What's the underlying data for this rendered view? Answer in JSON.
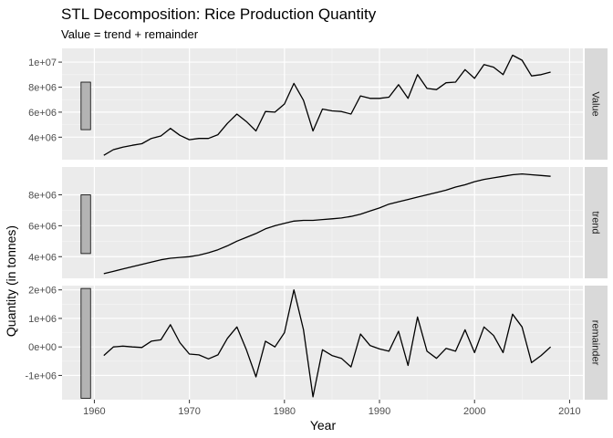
{
  "chart_data": {
    "type": "line",
    "title": "STL Decomposition: Rice Production Quantity",
    "subtitle": "Value = trend + remainder",
    "xlabel": "Year",
    "ylabel": "Quantity (in tonnes)",
    "x": [
      1961,
      1962,
      1963,
      1964,
      1965,
      1966,
      1967,
      1968,
      1969,
      1970,
      1971,
      1972,
      1973,
      1974,
      1975,
      1976,
      1977,
      1978,
      1979,
      1980,
      1981,
      1982,
      1983,
      1984,
      1985,
      1986,
      1987,
      1988,
      1989,
      1990,
      1991,
      1992,
      1993,
      1994,
      1995,
      1996,
      1997,
      1998,
      1999,
      2000,
      2001,
      2002,
      2003,
      2004,
      2005,
      2006,
      2007,
      2008
    ],
    "xlim": [
      1956.6,
      2011.4
    ],
    "x_ticks": [
      1960,
      1970,
      1980,
      1990,
      2000,
      2010
    ],
    "x_tick_labels": [
      "1960",
      "1970",
      "1980",
      "1990",
      "2000",
      "2010"
    ],
    "grid": true,
    "panels": [
      {
        "name": "Value",
        "ylim": [
          2200000,
          11100000
        ],
        "y_ticks": [
          4000000,
          6000000,
          8000000,
          10000000
        ],
        "y_tick_labels": [
          "4e+06",
          "6e+06",
          "8e+06",
          "1e+07"
        ],
        "scale_bar": [
          4600000,
          8400000
        ],
        "values": [
          2550000,
          3000000,
          3200000,
          3350000,
          3480000,
          3900000,
          4100000,
          4700000,
          4150000,
          3800000,
          3900000,
          3900000,
          4200000,
          5100000,
          5850000,
          5250000,
          4500000,
          6050000,
          6000000,
          6650000,
          8300000,
          6950000,
          4500000,
          6250000,
          6100000,
          6050000,
          5850000,
          7300000,
          7100000,
          7100000,
          7200000,
          8200000,
          7100000,
          9000000,
          7900000,
          7800000,
          8350000,
          8400000,
          9400000,
          8700000,
          9800000,
          9600000,
          9000000,
          10550000,
          10150000,
          8900000,
          9000000,
          9200000
        ]
      },
      {
        "name": "trend",
        "ylim": [
          2600000,
          9800000
        ],
        "y_ticks": [
          4000000,
          6000000,
          8000000
        ],
        "y_tick_labels": [
          "4e+06",
          "6e+06",
          "8e+06"
        ],
        "scale_bar": [
          4200000,
          8000000
        ],
        "values": [
          2900000,
          3050000,
          3200000,
          3350000,
          3500000,
          3650000,
          3800000,
          3900000,
          3950000,
          4000000,
          4100000,
          4250000,
          4450000,
          4700000,
          5000000,
          5250000,
          5500000,
          5800000,
          6000000,
          6150000,
          6300000,
          6350000,
          6350000,
          6400000,
          6450000,
          6500000,
          6600000,
          6750000,
          6950000,
          7150000,
          7400000,
          7550000,
          7700000,
          7850000,
          8000000,
          8150000,
          8300000,
          8500000,
          8650000,
          8850000,
          9000000,
          9100000,
          9200000,
          9300000,
          9350000,
          9300000,
          9250000,
          9200000
        ]
      },
      {
        "name": "remainder",
        "ylim": [
          -1850000,
          2150000
        ],
        "y_ticks": [
          -1000000,
          0,
          1000000,
          2000000
        ],
        "y_tick_labels": [
          "-1e+06",
          "0e+00",
          "1e+06",
          "2e+06"
        ],
        "scale_bar": [
          -1800000,
          2050000
        ],
        "values": [
          -300000,
          0,
          30000,
          0,
          -20000,
          200000,
          250000,
          780000,
          150000,
          -250000,
          -280000,
          -420000,
          -280000,
          300000,
          700000,
          -100000,
          -1050000,
          200000,
          0,
          500000,
          2000000,
          600000,
          -1750000,
          -100000,
          -300000,
          -400000,
          -700000,
          450000,
          50000,
          -70000,
          -150000,
          550000,
          -650000,
          1050000,
          -150000,
          -400000,
          -50000,
          -150000,
          600000,
          -200000,
          700000,
          400000,
          -200000,
          1150000,
          700000,
          -550000,
          -300000,
          0
        ]
      }
    ]
  },
  "colors": {
    "panel_bg": "#ebebeb",
    "strip_bg": "#d9d9d9",
    "grid_major": "#ffffff",
    "line": "#000000",
    "scale_bar_fill": "#b3b3b3"
  }
}
